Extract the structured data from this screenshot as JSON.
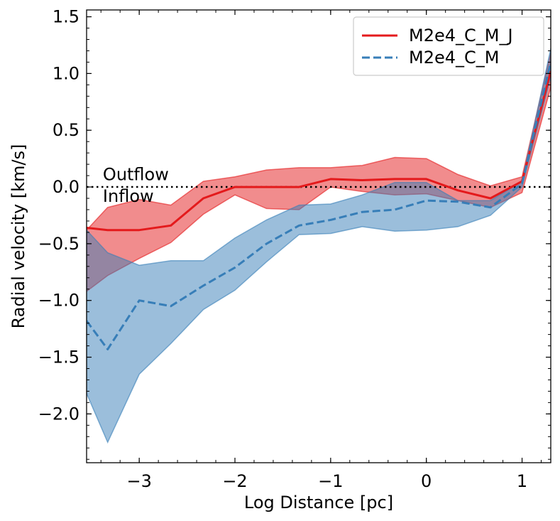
{
  "chart_data": {
    "type": "line",
    "title": "",
    "xlabel": "Log Distance [pc]",
    "ylabel": "Radial velocity [km/s]",
    "xlim": [
      -3.55,
      1.3
    ],
    "ylim": [
      -2.43,
      1.56
    ],
    "xticks": [
      -3,
      -2,
      -1,
      0,
      1
    ],
    "xtick_labels": [
      "−3",
      "−2",
      "−1",
      "0",
      "1"
    ],
    "yticks": [
      -2.0,
      -1.5,
      -1.0,
      -0.5,
      0.0,
      0.5,
      1.0,
      1.5
    ],
    "ytick_labels": [
      "−2.0",
      "−1.5",
      "−1.0",
      "−0.5",
      "0.0",
      "0.5",
      "1.0",
      "1.5"
    ],
    "reference_line": {
      "y": 0.0,
      "style": "dotted",
      "color": "#000000"
    },
    "annotations": [
      {
        "text": "Outflow",
        "x": -3.38,
        "y": 0.06
      },
      {
        "text": "Inflow",
        "x": -3.38,
        "y": -0.13
      }
    ],
    "legend": {
      "location": "top-right"
    },
    "series": [
      {
        "name": "M2e4_C_M_J",
        "color": "#e41a1c",
        "linestyle": "solid",
        "x": [
          -3.55,
          -3.33,
          -3.0,
          -2.67,
          -2.33,
          -2.0,
          -1.67,
          -1.33,
          -1.0,
          -0.67,
          -0.33,
          0.0,
          0.33,
          0.67,
          1.0,
          1.3
        ],
        "y": [
          -0.36,
          -0.38,
          -0.38,
          -0.34,
          -0.1,
          0.0,
          0.0,
          0.0,
          0.07,
          0.06,
          0.07,
          0.07,
          -0.03,
          -0.1,
          0.05,
          1.02
        ],
        "lower": [
          -0.92,
          -0.78,
          -0.63,
          -0.49,
          -0.24,
          -0.07,
          -0.19,
          -0.2,
          0.0,
          -0.04,
          -0.07,
          -0.06,
          -0.12,
          -0.18,
          -0.05,
          0.88
        ],
        "upper": [
          -0.38,
          -0.18,
          -0.11,
          -0.16,
          0.05,
          0.09,
          0.15,
          0.17,
          0.17,
          0.19,
          0.26,
          0.25,
          0.11,
          0.01,
          0.09,
          1.18
        ]
      },
      {
        "name": "M2e4_C_M",
        "color": "#377eb8",
        "linestyle": "dashed",
        "x": [
          -3.55,
          -3.33,
          -3.0,
          -2.67,
          -2.33,
          -2.0,
          -1.67,
          -1.33,
          -1.0,
          -0.67,
          -0.33,
          0.0,
          0.33,
          0.67,
          1.0,
          1.3
        ],
        "y": [
          -1.18,
          -1.43,
          -1.0,
          -1.05,
          -0.87,
          -0.71,
          -0.5,
          -0.34,
          -0.29,
          -0.22,
          -0.2,
          -0.12,
          -0.13,
          -0.18,
          0.03,
          1.1
        ],
        "lower": [
          -1.82,
          -2.25,
          -1.65,
          -1.38,
          -1.08,
          -0.91,
          -0.66,
          -0.42,
          -0.41,
          -0.35,
          -0.39,
          -0.38,
          -0.35,
          -0.25,
          0.0,
          0.97
        ],
        "upper": [
          -0.38,
          -0.58,
          -0.69,
          -0.65,
          -0.65,
          -0.45,
          -0.29,
          -0.16,
          -0.15,
          -0.07,
          0.04,
          0.04,
          -0.12,
          -0.12,
          0.05,
          1.22
        ]
      }
    ]
  }
}
